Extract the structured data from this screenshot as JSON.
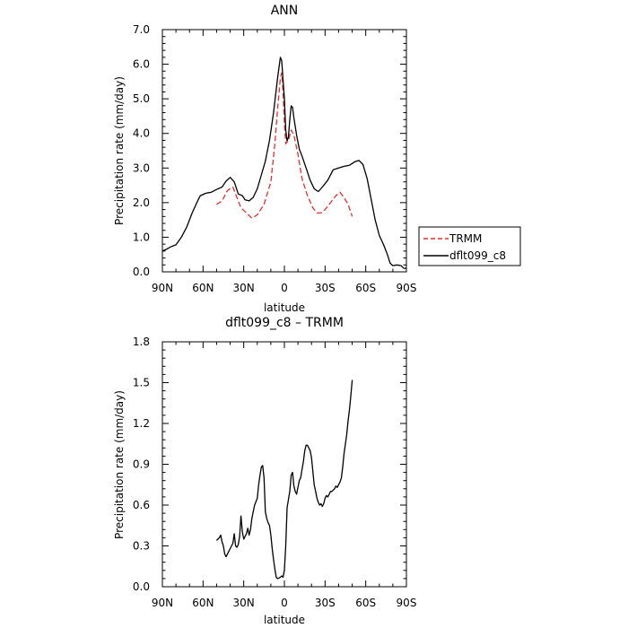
{
  "chart_data": [
    {
      "type": "line",
      "title": "ANN",
      "xlabel": "latitude",
      "ylabel": "Precipitation rate (mm/day)",
      "xlim": [
        90,
        -90
      ],
      "ylim": [
        0,
        7
      ],
      "x_ticks": [
        90,
        60,
        30,
        0,
        -30,
        -60,
        -90
      ],
      "x_tick_labels": [
        "90N",
        "60N",
        "30N",
        "0",
        "30S",
        "60S",
        "90S"
      ],
      "y_ticks": [
        0,
        1,
        2,
        3,
        4,
        5,
        6,
        7
      ],
      "y_tick_labels": [
        "0.0",
        "1.0",
        "2.0",
        "3.0",
        "4.0",
        "5.0",
        "6.0",
        "7.0"
      ],
      "grid": false,
      "legend_position": "right-outside",
      "series": [
        {
          "name": "TRMM",
          "color": "#e03030",
          "dash": "dashed",
          "points": [
            [
              50,
              1.95
            ],
            [
              46,
              2.05
            ],
            [
              42,
              2.35
            ],
            [
              38,
              2.45
            ],
            [
              35,
              2.15
            ],
            [
              32,
              1.85
            ],
            [
              28,
              1.7
            ],
            [
              24,
              1.55
            ],
            [
              20,
              1.65
            ],
            [
              15,
              1.95
            ],
            [
              10,
              2.6
            ],
            [
              7,
              3.7
            ],
            [
              5,
              4.7
            ],
            [
              3,
              5.6
            ],
            [
              2,
              5.75
            ],
            [
              1,
              5.2
            ],
            [
              0,
              4.3
            ],
            [
              -1,
              3.7
            ],
            [
              -3,
              3.8
            ],
            [
              -5,
              4.1
            ],
            [
              -7,
              3.95
            ],
            [
              -10,
              3.4
            ],
            [
              -13,
              2.7
            ],
            [
              -17,
              2.2
            ],
            [
              -21,
              1.85
            ],
            [
              -24,
              1.7
            ],
            [
              -27,
              1.7
            ],
            [
              -30,
              1.8
            ],
            [
              -34,
              2.0
            ],
            [
              -38,
              2.2
            ],
            [
              -41,
              2.3
            ],
            [
              -44,
              2.15
            ],
            [
              -47,
              1.95
            ],
            [
              -50,
              1.6
            ]
          ]
        },
        {
          "name": "dflt099_c8",
          "color": "#000000",
          "dash": "solid",
          "points": [
            [
              90,
              0.6
            ],
            [
              87,
              0.65
            ],
            [
              84,
              0.72
            ],
            [
              80,
              0.78
            ],
            [
              76,
              1.0
            ],
            [
              72,
              1.3
            ],
            [
              68,
              1.7
            ],
            [
              64,
              2.05
            ],
            [
              62,
              2.2
            ],
            [
              58,
              2.27
            ],
            [
              54,
              2.3
            ],
            [
              50,
              2.38
            ],
            [
              46,
              2.45
            ],
            [
              43,
              2.62
            ],
            [
              40,
              2.73
            ],
            [
              37,
              2.6
            ],
            [
              34,
              2.25
            ],
            [
              31,
              2.2
            ],
            [
              29,
              2.08
            ],
            [
              26,
              2.05
            ],
            [
              23,
              2.15
            ],
            [
              20,
              2.4
            ],
            [
              17,
              2.8
            ],
            [
              14,
              3.2
            ],
            [
              11,
              3.8
            ],
            [
              8,
              4.6
            ],
            [
              5,
              5.6
            ],
            [
              3,
              6.2
            ],
            [
              2,
              6.1
            ],
            [
              0,
              5.0
            ],
            [
              -1,
              4.1
            ],
            [
              -2,
              3.78
            ],
            [
              -3,
              3.9
            ],
            [
              -4,
              4.4
            ],
            [
              -5,
              4.8
            ],
            [
              -6,
              4.75
            ],
            [
              -7,
              4.45
            ],
            [
              -9,
              3.95
            ],
            [
              -11,
              3.55
            ],
            [
              -13,
              3.35
            ],
            [
              -16,
              3.0
            ],
            [
              -19,
              2.65
            ],
            [
              -22,
              2.4
            ],
            [
              -25,
              2.32
            ],
            [
              -28,
              2.45
            ],
            [
              -32,
              2.65
            ],
            [
              -36,
              2.95
            ],
            [
              -40,
              3.0
            ],
            [
              -44,
              3.05
            ],
            [
              -48,
              3.08
            ],
            [
              -52,
              3.18
            ],
            [
              -55,
              3.22
            ],
            [
              -58,
              3.1
            ],
            [
              -61,
              2.7
            ],
            [
              -64,
              2.1
            ],
            [
              -67,
              1.5
            ],
            [
              -70,
              1.05
            ],
            [
              -73,
              0.8
            ],
            [
              -76,
              0.5
            ],
            [
              -78,
              0.25
            ],
            [
              -80,
              0.18
            ],
            [
              -83,
              0.2
            ],
            [
              -86,
              0.18
            ],
            [
              -88,
              0.1
            ],
            [
              -90,
              0.1
            ]
          ]
        }
      ]
    },
    {
      "type": "line",
      "title": "dflt099_c8 – TRMM",
      "xlabel": "latitude",
      "ylabel": "Precipitation rate (mm/day)",
      "xlim": [
        90,
        -90
      ],
      "ylim": [
        0,
        1.8
      ],
      "x_ticks": [
        90,
        60,
        30,
        0,
        -30,
        -60,
        -90
      ],
      "x_tick_labels": [
        "90N",
        "60N",
        "30N",
        "0",
        "30S",
        "60S",
        "90S"
      ],
      "y_ticks": [
        0,
        0.3,
        0.6,
        0.9,
        1.2,
        1.5,
        1.8
      ],
      "y_tick_labels": [
        "0.0",
        "0.3",
        "0.6",
        "0.9",
        "1.2",
        "1.5",
        "1.8"
      ],
      "grid": false,
      "series": [
        {
          "color": "#000000",
          "dash": "solid",
          "points": [
            [
              50,
              0.34
            ],
            [
              48,
              0.36
            ],
            [
              47,
              0.38
            ],
            [
              46,
              0.33
            ],
            [
              45,
              0.3
            ],
            [
              44,
              0.24
            ],
            [
              43,
              0.22
            ],
            [
              41,
              0.26
            ],
            [
              40,
              0.28
            ],
            [
              38,
              0.32
            ],
            [
              37,
              0.39
            ],
            [
              36,
              0.3
            ],
            [
              35,
              0.29
            ],
            [
              34,
              0.31
            ],
            [
              33,
              0.37
            ],
            [
              32,
              0.52
            ],
            [
              31,
              0.4
            ],
            [
              30,
              0.35
            ],
            [
              28,
              0.39
            ],
            [
              27,
              0.43
            ],
            [
              26,
              0.38
            ],
            [
              25,
              0.42
            ],
            [
              24,
              0.5
            ],
            [
              23,
              0.55
            ],
            [
              22,
              0.6
            ],
            [
              20,
              0.65
            ],
            [
              19,
              0.75
            ],
            [
              18,
              0.82
            ],
            [
              17,
              0.88
            ],
            [
              16,
              0.89
            ],
            [
              15,
              0.8
            ],
            [
              14,
              0.55
            ],
            [
              13,
              0.5
            ],
            [
              12,
              0.47
            ],
            [
              11,
              0.45
            ],
            [
              10,
              0.38
            ],
            [
              9,
              0.28
            ],
            [
              8,
              0.2
            ],
            [
              7,
              0.13
            ],
            [
              6,
              0.07
            ],
            [
              5,
              0.06
            ],
            [
              3,
              0.07
            ],
            [
              2,
              0.08
            ],
            [
              1,
              0.07
            ],
            [
              0,
              0.12
            ],
            [
              -1,
              0.3
            ],
            [
              -2,
              0.58
            ],
            [
              -3,
              0.64
            ],
            [
              -4,
              0.7
            ],
            [
              -5,
              0.82
            ],
            [
              -6,
              0.84
            ],
            [
              -7,
              0.74
            ],
            [
              -8,
              0.7
            ],
            [
              -9,
              0.68
            ],
            [
              -10,
              0.73
            ],
            [
              -11,
              0.78
            ],
            [
              -12,
              0.8
            ],
            [
              -13,
              0.86
            ],
            [
              -14,
              0.92
            ],
            [
              -15,
              1.0
            ],
            [
              -16,
              1.04
            ],
            [
              -17,
              1.04
            ],
            [
              -18,
              1.02
            ],
            [
              -19,
              1.0
            ],
            [
              -20,
              0.95
            ],
            [
              -21,
              0.85
            ],
            [
              -22,
              0.75
            ],
            [
              -23,
              0.7
            ],
            [
              -24,
              0.65
            ],
            [
              -25,
              0.62
            ],
            [
              -26,
              0.6
            ],
            [
              -27,
              0.61
            ],
            [
              -28,
              0.59
            ],
            [
              -29,
              0.61
            ],
            [
              -30,
              0.65
            ],
            [
              -31,
              0.67
            ],
            [
              -32,
              0.66
            ],
            [
              -33,
              0.68
            ],
            [
              -34,
              0.7
            ],
            [
              -35,
              0.7
            ],
            [
              -36,
              0.71
            ],
            [
              -37,
              0.72
            ],
            [
              -38,
              0.74
            ],
            [
              -39,
              0.73
            ],
            [
              -40,
              0.75
            ],
            [
              -41,
              0.77
            ],
            [
              -42,
              0.8
            ],
            [
              -43,
              0.88
            ],
            [
              -44,
              0.98
            ],
            [
              -45,
              1.05
            ],
            [
              -46,
              1.12
            ],
            [
              -47,
              1.22
            ],
            [
              -48,
              1.3
            ],
            [
              -49,
              1.4
            ],
            [
              -50,
              1.52
            ]
          ]
        }
      ]
    }
  ]
}
